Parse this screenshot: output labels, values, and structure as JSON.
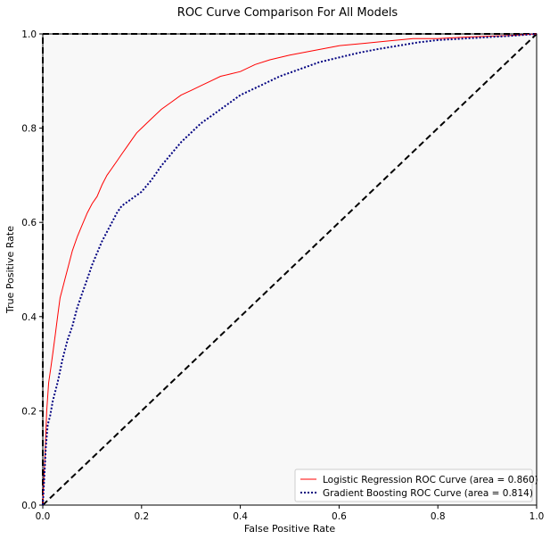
{
  "chart_data": {
    "type": "line",
    "title": "ROC Curve Comparison For All Models",
    "xlabel": "False Positive Rate",
    "ylabel": "True Positive Rate",
    "xlim": [
      0,
      1
    ],
    "ylim": [
      0,
      1
    ],
    "xticks": [
      "0.0",
      "0.2",
      "0.4",
      "0.6",
      "0.8",
      "1.0"
    ],
    "yticks": [
      "0.0",
      "0.2",
      "0.4",
      "0.6",
      "0.8",
      "1.0"
    ],
    "grid": false,
    "legend_position": "lower-right",
    "background_color": "#f8f8f8",
    "series": [
      {
        "name": "Logistic Regression ROC Curve (area =  0.860)",
        "color": "#ff0000",
        "style": "solid",
        "x": [
          0.0,
          0.002,
          0.005,
          0.008,
          0.012,
          0.016,
          0.02,
          0.025,
          0.03,
          0.035,
          0.04,
          0.045,
          0.05,
          0.06,
          0.07,
          0.08,
          0.09,
          0.1,
          0.11,
          0.12,
          0.13,
          0.14,
          0.15,
          0.16,
          0.17,
          0.18,
          0.19,
          0.2,
          0.22,
          0.24,
          0.26,
          0.28,
          0.3,
          0.32,
          0.34,
          0.36,
          0.38,
          0.4,
          0.43,
          0.46,
          0.5,
          0.55,
          0.6,
          0.65,
          0.7,
          0.75,
          0.8,
          0.85,
          0.9,
          0.95,
          1.0
        ],
        "y": [
          0.0,
          0.05,
          0.12,
          0.2,
          0.26,
          0.29,
          0.32,
          0.36,
          0.4,
          0.44,
          0.46,
          0.48,
          0.5,
          0.54,
          0.57,
          0.595,
          0.62,
          0.64,
          0.655,
          0.68,
          0.7,
          0.715,
          0.73,
          0.745,
          0.76,
          0.775,
          0.79,
          0.8,
          0.82,
          0.84,
          0.855,
          0.87,
          0.88,
          0.89,
          0.9,
          0.91,
          0.915,
          0.92,
          0.935,
          0.945,
          0.955,
          0.965,
          0.975,
          0.98,
          0.985,
          0.99,
          0.99,
          0.993,
          0.995,
          0.997,
          1.0
        ]
      },
      {
        "name": "Gradient Boosting ROC Curve (area =  0.814)",
        "color": "#000080",
        "style": "dotted",
        "x": [
          0.0,
          0.003,
          0.006,
          0.01,
          0.015,
          0.02,
          0.03,
          0.04,
          0.05,
          0.06,
          0.07,
          0.08,
          0.09,
          0.1,
          0.11,
          0.12,
          0.13,
          0.14,
          0.15,
          0.16,
          0.18,
          0.2,
          0.22,
          0.24,
          0.26,
          0.28,
          0.3,
          0.32,
          0.34,
          0.36,
          0.38,
          0.4,
          0.44,
          0.48,
          0.52,
          0.56,
          0.6,
          0.64,
          0.68,
          0.72,
          0.76,
          0.8,
          0.85,
          0.9,
          0.95,
          1.0
        ],
        "y": [
          0.0,
          0.06,
          0.12,
          0.17,
          0.19,
          0.22,
          0.26,
          0.31,
          0.35,
          0.38,
          0.42,
          0.45,
          0.48,
          0.51,
          0.535,
          0.56,
          0.58,
          0.6,
          0.62,
          0.635,
          0.65,
          0.665,
          0.69,
          0.72,
          0.745,
          0.77,
          0.79,
          0.81,
          0.825,
          0.84,
          0.855,
          0.87,
          0.89,
          0.91,
          0.925,
          0.94,
          0.95,
          0.96,
          0.968,
          0.975,
          0.982,
          0.987,
          0.99,
          0.993,
          0.996,
          1.0
        ]
      }
    ],
    "reference_lines": [
      {
        "kind": "diagonal",
        "x": [
          0,
          1
        ],
        "y": [
          0,
          1
        ],
        "color": "#000000",
        "style": "dashed"
      },
      {
        "kind": "perfect",
        "x": [
          0,
          0,
          1
        ],
        "y": [
          0,
          1,
          1
        ],
        "color": "#000000",
        "style": "dashed"
      }
    ]
  }
}
